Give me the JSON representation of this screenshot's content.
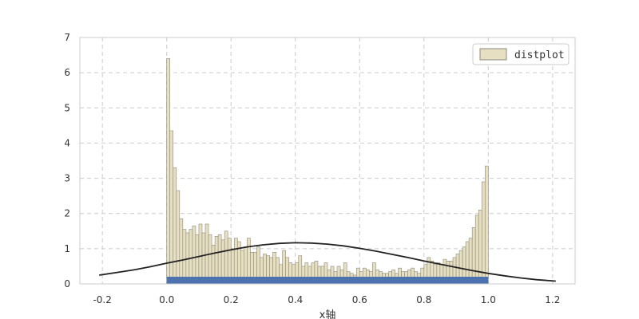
{
  "chart_data": {
    "type": "histogram",
    "xlabel": "x轴",
    "ylabel": "",
    "xlim": [
      -0.27,
      1.27
    ],
    "ylim": [
      0,
      7
    ],
    "x_ticks": [
      "-0.2",
      "0.0",
      "0.2",
      "0.4",
      "0.6",
      "0.8",
      "1.0",
      "1.2"
    ],
    "x_tick_values": [
      -0.2,
      0.0,
      0.2,
      0.4,
      0.6,
      0.8,
      1.0,
      1.2
    ],
    "y_ticks": [
      "0",
      "1",
      "2",
      "3",
      "4",
      "5",
      "6",
      "7"
    ],
    "y_tick_values": [
      0,
      1,
      2,
      3,
      4,
      5,
      6,
      7
    ],
    "grid": true,
    "legend": {
      "position": "top-right",
      "entries": [
        "distplot"
      ]
    },
    "series": [
      {
        "name": "distplot",
        "kind": "histogram",
        "bin_start": 0.0,
        "bin_width": 0.01,
        "values": [
          6.4,
          4.35,
          3.3,
          2.65,
          1.85,
          1.55,
          1.45,
          1.55,
          1.65,
          1.4,
          1.7,
          1.45,
          1.7,
          1.4,
          1.1,
          1.35,
          1.4,
          1.25,
          1.5,
          1.3,
          1.0,
          1.3,
          1.2,
          0.95,
          1.05,
          1.3,
          0.9,
          0.9,
          1.05,
          0.75,
          0.85,
          0.8,
          0.75,
          0.9,
          0.75,
          0.55,
          0.95,
          0.75,
          0.6,
          0.55,
          0.6,
          0.8,
          0.5,
          0.6,
          0.5,
          0.6,
          0.65,
          0.5,
          0.5,
          0.6,
          0.4,
          0.5,
          0.35,
          0.5,
          0.4,
          0.6,
          0.35,
          0.3,
          0.25,
          0.45,
          0.35,
          0.45,
          0.4,
          0.35,
          0.6,
          0.4,
          0.35,
          0.3,
          0.3,
          0.35,
          0.4,
          0.3,
          0.45,
          0.35,
          0.35,
          0.4,
          0.45,
          0.35,
          0.3,
          0.45,
          0.55,
          0.75,
          0.65,
          0.55,
          0.6,
          0.55,
          0.7,
          0.65,
          0.65,
          0.75,
          0.85,
          0.95,
          1.05,
          1.2,
          1.3,
          1.6,
          1.95,
          2.1,
          2.9,
          3.35
        ]
      },
      {
        "name": "",
        "kind": "curve",
        "x": [
          -0.21,
          -0.15,
          -0.1,
          -0.05,
          0.0,
          0.05,
          0.1,
          0.15,
          0.2,
          0.25,
          0.3,
          0.35,
          0.4,
          0.45,
          0.5,
          0.55,
          0.6,
          0.65,
          0.7,
          0.75,
          0.8,
          0.85,
          0.9,
          0.95,
          1.0,
          1.05,
          1.1,
          1.15,
          1.21
        ],
        "y": [
          0.25,
          0.33,
          0.4,
          0.49,
          0.59,
          0.68,
          0.78,
          0.88,
          0.97,
          1.05,
          1.11,
          1.15,
          1.17,
          1.16,
          1.13,
          1.08,
          1.01,
          0.93,
          0.84,
          0.75,
          0.65,
          0.56,
          0.47,
          0.38,
          0.3,
          0.23,
          0.17,
          0.12,
          0.08
        ]
      },
      {
        "name": "",
        "kind": "rug",
        "range": [
          0.0,
          1.0
        ],
        "color": "#4c72b0"
      }
    ],
    "colors": {
      "bar_fill": "#e7dfc1",
      "bar_edge": "#8c8a7a",
      "curve": "#222222",
      "rug": "#4c72b0",
      "grid": "#cccccc",
      "frame": "#cccccc"
    }
  }
}
